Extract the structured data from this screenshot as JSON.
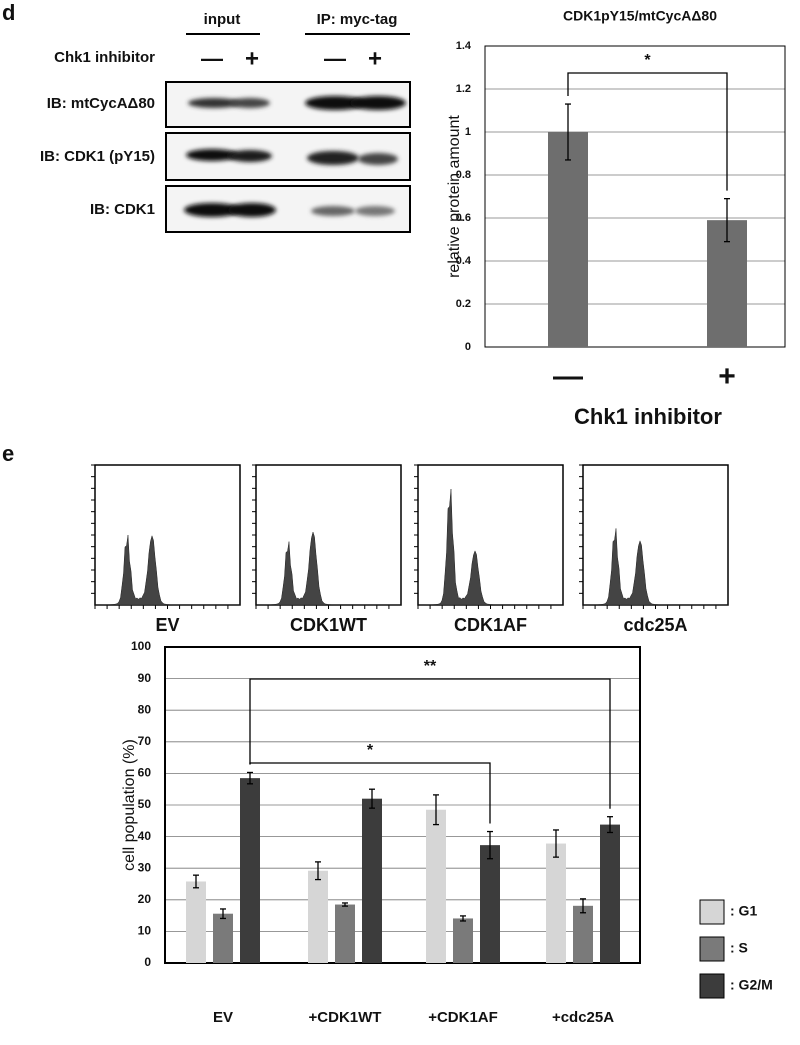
{
  "panel_d": {
    "label": "d",
    "blot": {
      "headers": [
        "input",
        "IP: myc-tag"
      ],
      "treatment_label": "Chk1 inhibitor",
      "treatment_signs": [
        "—",
        "+",
        "—",
        "+"
      ],
      "rows": [
        "IB: mtCycAΔ80",
        "IB: CDK1 (pY15)",
        "IB: CDK1"
      ]
    }
  },
  "panel_e": {
    "label": "e",
    "histograms": [
      "EV",
      "CDK1WT",
      "CDK1AF",
      "cdc25A"
    ]
  },
  "chart_data": [
    {
      "type": "bar",
      "title": "CDK1pY15/mtCycAΔ80",
      "xlabel": "Chk1 inhibitor",
      "ylabel": "relative protein amount",
      "categories": [
        "—",
        "+"
      ],
      "values": [
        1,
        0.59
      ],
      "errors": [
        0.13,
        0.1
      ],
      "color": "#6e6e6e",
      "ylim": [
        0,
        1.4
      ],
      "yticks": [
        0,
        0.2,
        0.4,
        0.6,
        0.8,
        1,
        1.2,
        1.4
      ],
      "grid": true,
      "annotations": [
        "*"
      ]
    },
    {
      "type": "bar",
      "ylabel": "cell population (%)",
      "categories": [
        "EV",
        "+CDK1WT",
        "+CDK1AF",
        "+cdc25A"
      ],
      "series": [
        {
          "name": ": G1",
          "color": "#d6d6d6",
          "values": [
            25.8,
            29.2,
            48.5,
            37.8
          ],
          "errors": [
            2,
            2.8,
            4.7,
            4.3
          ]
        },
        {
          "name": ": S",
          "color": "#7a7a7a",
          "values": [
            15.6,
            18.5,
            14.1,
            18.1
          ],
          "errors": [
            1.5,
            0.5,
            0.8,
            2.2
          ]
        },
        {
          "name": ": G2/M",
          "color": "#3c3c3c",
          "values": [
            58.5,
            52,
            37.3,
            43.8
          ],
          "errors": [
            1.8,
            3,
            4.3,
            2.5
          ]
        }
      ],
      "ylim": [
        0,
        100
      ],
      "yticks": [
        0,
        10,
        20,
        30,
        40,
        50,
        60,
        70,
        80,
        90,
        100
      ],
      "grid": true,
      "legend": "right",
      "annotations": [
        "*",
        "**"
      ]
    }
  ]
}
